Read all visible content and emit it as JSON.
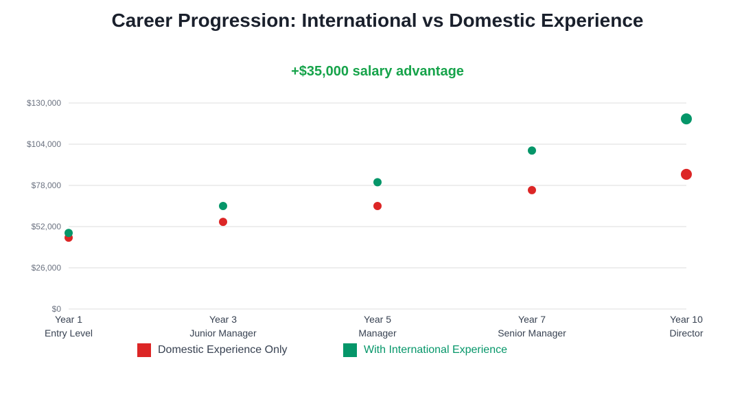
{
  "chart_data": {
    "type": "scatter",
    "title": "Career Progression: International vs Domestic Experience",
    "categories": [
      {
        "year": "Year 1",
        "role": "Entry Level"
      },
      {
        "year": "Year 3",
        "role": "Junior Manager"
      },
      {
        "year": "Year 5",
        "role": "Manager"
      },
      {
        "year": "Year 7",
        "role": "Senior Manager"
      },
      {
        "year": "Year 10",
        "role": "Director"
      }
    ],
    "yticks": [
      "$0",
      "$26,000",
      "$52,000",
      "$78,000",
      "$104,000",
      "$130,000"
    ],
    "ylim": [
      0,
      130000
    ],
    "grid": true,
    "series": [
      {
        "name": "Domestic Experience Only",
        "color": "#dc2626",
        "values": [
          45000,
          55000,
          65000,
          75000,
          85000
        ]
      },
      {
        "name": "With International Experience",
        "color": "#059669",
        "values": [
          48000,
          65000,
          80000,
          100000,
          120000
        ]
      }
    ],
    "annotation": "+$35,000 salary advantage",
    "annotation_color": "#16a34a",
    "legend_placement": "bottom"
  }
}
